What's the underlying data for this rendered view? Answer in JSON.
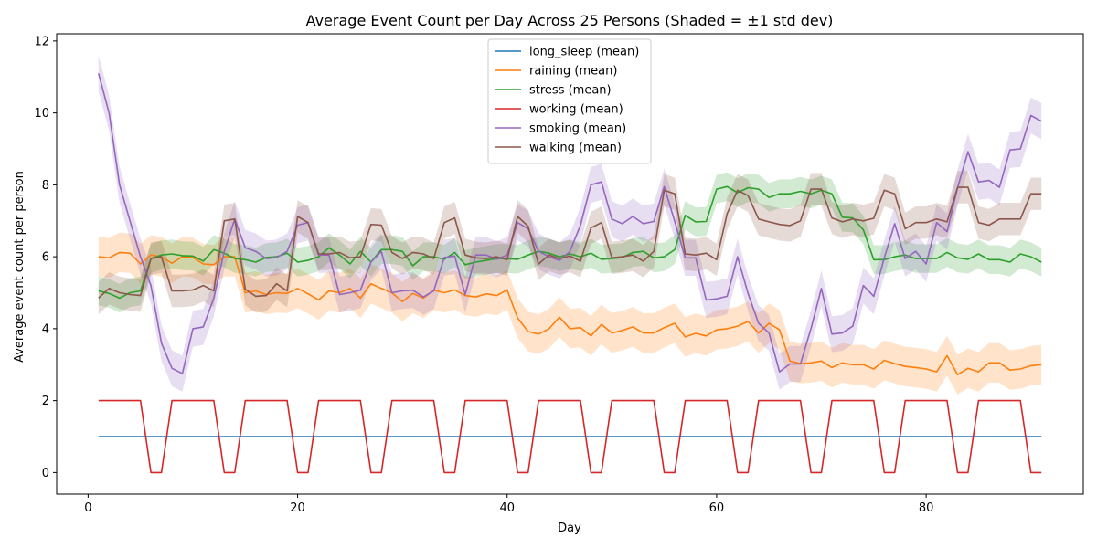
{
  "chart_data": {
    "type": "line",
    "title": "Average Event Count per Day Across 25 Persons (Shaded = ±1 std dev)",
    "xlabel": "Day",
    "ylabel": "Average event count per person",
    "xlim": [
      -3,
      95
    ],
    "ylim": [
      -0.6,
      12.2
    ],
    "xticks": [
      0,
      20,
      40,
      60,
      80
    ],
    "yticks": [
      0,
      2,
      4,
      6,
      8,
      10,
      12
    ],
    "grid": false,
    "legend_position": "top-center",
    "shading": "±1 std dev",
    "series": [
      {
        "name": "long_sleep (mean)",
        "color": "#1f77b4",
        "x": [
          1,
          91
        ],
        "y": [
          1,
          1
        ],
        "std": 0
      },
      {
        "name": "raining (mean)",
        "color": "#ff7f0e",
        "x": [
          1,
          2,
          3,
          4,
          5,
          6,
          7,
          8,
          9,
          10,
          11,
          12,
          13,
          14,
          15,
          16,
          17,
          18,
          19,
          20,
          21,
          22,
          23,
          24,
          25,
          26,
          27,
          28,
          29,
          30,
          31,
          32,
          33,
          34,
          35,
          36,
          37,
          38,
          39,
          40,
          41,
          42,
          43,
          44,
          45,
          46,
          47,
          48,
          49,
          50,
          51,
          52,
          53,
          54,
          55,
          56,
          57,
          58,
          59,
          60,
          61,
          62,
          63,
          64,
          65,
          66,
          67,
          68,
          69,
          70,
          71,
          72,
          73,
          74,
          75,
          76,
          77,
          78,
          79,
          80,
          81,
          82,
          83,
          84,
          85,
          86,
          87,
          88,
          89,
          90,
          91
        ],
        "y": [
          6.0,
          5.97,
          6.12,
          6.1,
          5.8,
          6.05,
          6.0,
          5.82,
          6.0,
          5.98,
          5.8,
          5.78,
          6.0,
          6.0,
          5.0,
          5.05,
          4.95,
          5.0,
          4.98,
          5.12,
          4.97,
          4.8,
          5.05,
          5.0,
          5.12,
          4.85,
          5.25,
          5.12,
          5.0,
          4.75,
          4.98,
          4.85,
          5.07,
          5.0,
          5.08,
          4.92,
          4.88,
          4.97,
          4.92,
          5.08,
          4.3,
          3.92,
          3.85,
          4.0,
          4.32,
          4.0,
          4.03,
          3.8,
          4.12,
          3.88,
          3.95,
          4.05,
          3.88,
          3.88,
          4.03,
          4.15,
          3.77,
          3.87,
          3.8,
          3.97,
          4.0,
          4.07,
          4.2,
          3.88,
          4.15,
          3.97,
          3.1,
          3.03,
          3.05,
          3.1,
          2.92,
          3.05,
          3.0,
          3.0,
          2.88,
          3.12,
          3.03,
          2.95,
          2.92,
          2.88,
          2.8,
          3.25,
          2.72,
          2.9,
          2.8,
          3.05,
          3.05,
          2.85,
          2.88,
          2.97,
          3.0
        ],
        "std": 0.55
      },
      {
        "name": "stress (mean)",
        "color": "#2ca02c",
        "x": [
          1,
          2,
          3,
          4,
          5,
          6,
          7,
          8,
          9,
          10,
          11,
          12,
          13,
          14,
          15,
          16,
          17,
          18,
          19,
          20,
          21,
          22,
          23,
          24,
          25,
          26,
          27,
          28,
          29,
          30,
          31,
          32,
          33,
          34,
          35,
          36,
          37,
          38,
          39,
          40,
          41,
          42,
          43,
          44,
          45,
          46,
          47,
          48,
          49,
          50,
          51,
          52,
          53,
          54,
          55,
          56,
          57,
          58,
          59,
          60,
          61,
          62,
          63,
          64,
          65,
          66,
          67,
          68,
          69,
          70,
          71,
          72,
          73,
          74,
          75,
          76,
          77,
          78,
          79,
          80,
          81,
          82,
          83,
          84,
          85,
          86,
          87,
          88,
          89,
          90,
          91
        ],
        "y": [
          5.05,
          4.98,
          4.85,
          5.0,
          5.05,
          5.95,
          6.05,
          6.08,
          6.03,
          6.02,
          5.88,
          6.2,
          6.1,
          5.95,
          5.92,
          5.85,
          5.98,
          6.0,
          6.1,
          5.85,
          5.9,
          6.0,
          6.25,
          6.05,
          5.8,
          6.15,
          5.85,
          6.2,
          6.2,
          6.15,
          5.75,
          6.0,
          6.0,
          5.93,
          6.12,
          5.78,
          5.85,
          5.9,
          5.95,
          5.95,
          5.93,
          6.05,
          6.15,
          6.1,
          6.0,
          6.08,
          6.0,
          6.1,
          5.93,
          5.95,
          5.98,
          6.12,
          6.15,
          5.97,
          6.0,
          6.2,
          7.15,
          6.97,
          6.98,
          7.88,
          7.95,
          7.78,
          7.92,
          7.88,
          7.65,
          7.75,
          7.75,
          7.82,
          7.75,
          7.85,
          7.75,
          7.1,
          7.08,
          6.75,
          5.92,
          5.92,
          6.0,
          6.05,
          5.95,
          5.95,
          5.95,
          6.12,
          5.97,
          5.93,
          6.08,
          5.92,
          5.92,
          5.85,
          6.08,
          6.0,
          5.85
        ],
        "std": 0.4
      },
      {
        "name": "working (mean)",
        "color": "#d62728",
        "x": [
          1,
          2,
          3,
          4,
          5,
          6,
          7,
          8,
          9,
          10,
          11,
          12,
          13,
          14,
          15,
          16,
          17,
          18,
          19,
          20,
          21,
          22,
          23,
          24,
          25,
          26,
          27,
          28,
          29,
          30,
          31,
          32,
          33,
          34,
          35,
          36,
          37,
          38,
          39,
          40,
          41,
          42,
          43,
          44,
          45,
          46,
          47,
          48,
          49,
          50,
          51,
          52,
          53,
          54,
          55,
          56,
          57,
          58,
          59,
          60,
          61,
          62,
          63,
          64,
          65,
          66,
          67,
          68,
          69,
          70,
          71,
          72,
          73,
          74,
          75,
          76,
          77,
          78,
          79,
          80,
          81,
          82,
          83,
          84,
          85,
          86,
          87,
          88,
          89,
          90,
          91
        ],
        "y": [
          2,
          2,
          2,
          2,
          2,
          0,
          0,
          2,
          2,
          2,
          2,
          2,
          0,
          0,
          2,
          2,
          2,
          2,
          2,
          0,
          0,
          2,
          2,
          2,
          2,
          2,
          0,
          0,
          2,
          2,
          2,
          2,
          2,
          0,
          0,
          2,
          2,
          2,
          2,
          2,
          0,
          0,
          2,
          2,
          2,
          2,
          2,
          0,
          0,
          2,
          2,
          2,
          2,
          2,
          0,
          0,
          2,
          2,
          2,
          2,
          2,
          0,
          0,
          2,
          2,
          2,
          2,
          2,
          0,
          0,
          2,
          2,
          2,
          2,
          2,
          0,
          0,
          2,
          2,
          2,
          2,
          2,
          0,
          0,
          2,
          2,
          2,
          2,
          2,
          0,
          0
        ],
        "std": 0
      },
      {
        "name": "smoking (mean)",
        "color": "#9467bd",
        "x": [
          1,
          2,
          3,
          4,
          5,
          6,
          7,
          8,
          9,
          10,
          11,
          12,
          13,
          14,
          15,
          16,
          17,
          18,
          19,
          20,
          21,
          22,
          23,
          24,
          25,
          26,
          27,
          28,
          29,
          30,
          31,
          32,
          33,
          34,
          35,
          36,
          37,
          38,
          39,
          40,
          41,
          42,
          43,
          44,
          45,
          46,
          47,
          48,
          49,
          50,
          51,
          52,
          53,
          54,
          55,
          56,
          57,
          58,
          59,
          60,
          61,
          62,
          63,
          64,
          65,
          66,
          67,
          68,
          69,
          70,
          71,
          72,
          73,
          74,
          75,
          76,
          77,
          78,
          79,
          80,
          81,
          82,
          83,
          84,
          85,
          86,
          87,
          88,
          89,
          90,
          91
        ],
        "y": [
          11.1,
          10.0,
          8.0,
          7.0,
          6.0,
          5.2,
          3.6,
          2.9,
          2.75,
          4.0,
          4.05,
          4.85,
          6.15,
          7.05,
          6.25,
          6.15,
          5.95,
          5.98,
          6.15,
          6.88,
          6.95,
          6.05,
          6.05,
          4.95,
          5.0,
          5.07,
          5.85,
          6.15,
          5.0,
          5.05,
          5.07,
          4.88,
          5.05,
          5.98,
          6.02,
          4.95,
          6.05,
          6.05,
          5.93,
          6.05,
          6.95,
          6.78,
          6.15,
          6.0,
          5.9,
          6.15,
          6.88,
          8.0,
          8.08,
          7.05,
          6.92,
          7.12,
          6.92,
          6.98,
          7.95,
          6.98,
          5.97,
          5.97,
          4.8,
          4.83,
          4.9,
          6.0,
          4.98,
          4.15,
          3.88,
          2.8,
          3.02,
          3.02,
          4.0,
          5.12,
          3.85,
          3.88,
          4.07,
          5.2,
          4.9,
          5.97,
          6.92,
          5.95,
          6.15,
          5.8,
          6.95,
          6.7,
          7.92,
          8.92,
          8.08,
          8.12,
          7.93,
          8.97,
          9.0,
          9.93,
          9.77
        ],
        "std": 0.5
      },
      {
        "name": "walking (mean)",
        "color": "#8c564b",
        "x": [
          1,
          2,
          3,
          4,
          5,
          6,
          7,
          8,
          9,
          10,
          11,
          12,
          13,
          14,
          15,
          16,
          17,
          18,
          19,
          20,
          21,
          22,
          23,
          24,
          25,
          26,
          27,
          28,
          29,
          30,
          31,
          32,
          33,
          34,
          35,
          36,
          37,
          38,
          39,
          40,
          41,
          42,
          43,
          44,
          45,
          46,
          47,
          48,
          49,
          50,
          51,
          52,
          53,
          54,
          55,
          56,
          57,
          58,
          59,
          60,
          61,
          62,
          63,
          64,
          65,
          66,
          67,
          68,
          69,
          70,
          71,
          72,
          73,
          74,
          75,
          76,
          77,
          78,
          79,
          80,
          81,
          82,
          83,
          84,
          85,
          86,
          87,
          88,
          89,
          90,
          91
        ],
        "y": [
          4.85,
          5.12,
          5.0,
          4.95,
          4.92,
          5.95,
          6.0,
          5.05,
          5.05,
          5.08,
          5.2,
          5.05,
          7.0,
          7.05,
          5.1,
          4.9,
          4.92,
          5.25,
          5.05,
          7.12,
          6.95,
          6.08,
          6.08,
          6.12,
          5.97,
          6.0,
          6.9,
          6.88,
          6.12,
          5.95,
          6.12,
          6.08,
          5.95,
          6.95,
          7.08,
          6.05,
          5.97,
          5.95,
          6.0,
          5.92,
          7.12,
          6.85,
          5.8,
          6.05,
          5.95,
          6.02,
          5.88,
          6.8,
          6.95,
          5.97,
          6.0,
          6.05,
          5.88,
          6.15,
          7.85,
          7.75,
          6.08,
          6.05,
          6.1,
          5.92,
          7.2,
          7.85,
          7.7,
          7.05,
          6.97,
          6.9,
          6.87,
          7.0,
          7.88,
          7.88,
          7.08,
          6.97,
          7.05,
          7.0,
          7.07,
          7.85,
          7.75,
          6.78,
          6.95,
          6.95,
          7.05,
          6.97,
          7.93,
          7.93,
          6.95,
          6.88,
          7.05,
          7.05,
          7.05,
          7.75,
          7.75
        ],
        "std": 0.45
      }
    ]
  }
}
